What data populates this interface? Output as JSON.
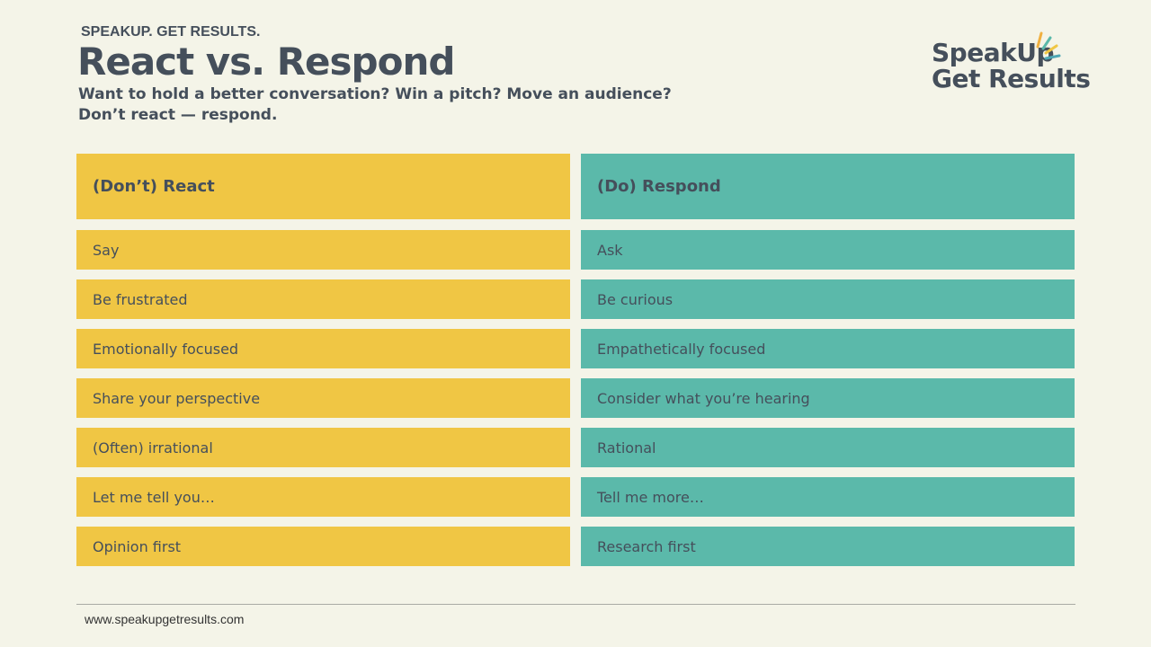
{
  "header": {
    "kicker": "SPEAKUP. GET RESULTS.",
    "title": "React vs. Respond",
    "subtitle_line1": "Want to hold a better conversation? Win a pitch? Move an audience?",
    "subtitle_line2": "Don’t react — respond."
  },
  "logo": {
    "line1": "SpeakUp",
    "line2": "Get Results"
  },
  "colors": {
    "react": "#f0c644",
    "respond": "#5bb9aa",
    "text": "#454f5b"
  },
  "react": {
    "heading": "(Don’t) React",
    "items": [
      "Say",
      "Be frustrated",
      "Emotionally focused",
      "Share your perspective",
      "(Often) irrational",
      "Let me tell you…",
      "Opinion first"
    ]
  },
  "respond": {
    "heading": "(Do) Respond",
    "items": [
      "Ask",
      "Be curious",
      "Empathetically focused",
      "Consider what you’re hearing",
      "Rational",
      "Tell me more…",
      "Research first"
    ]
  },
  "footer": {
    "url": "www.speakupgetresults.com"
  }
}
